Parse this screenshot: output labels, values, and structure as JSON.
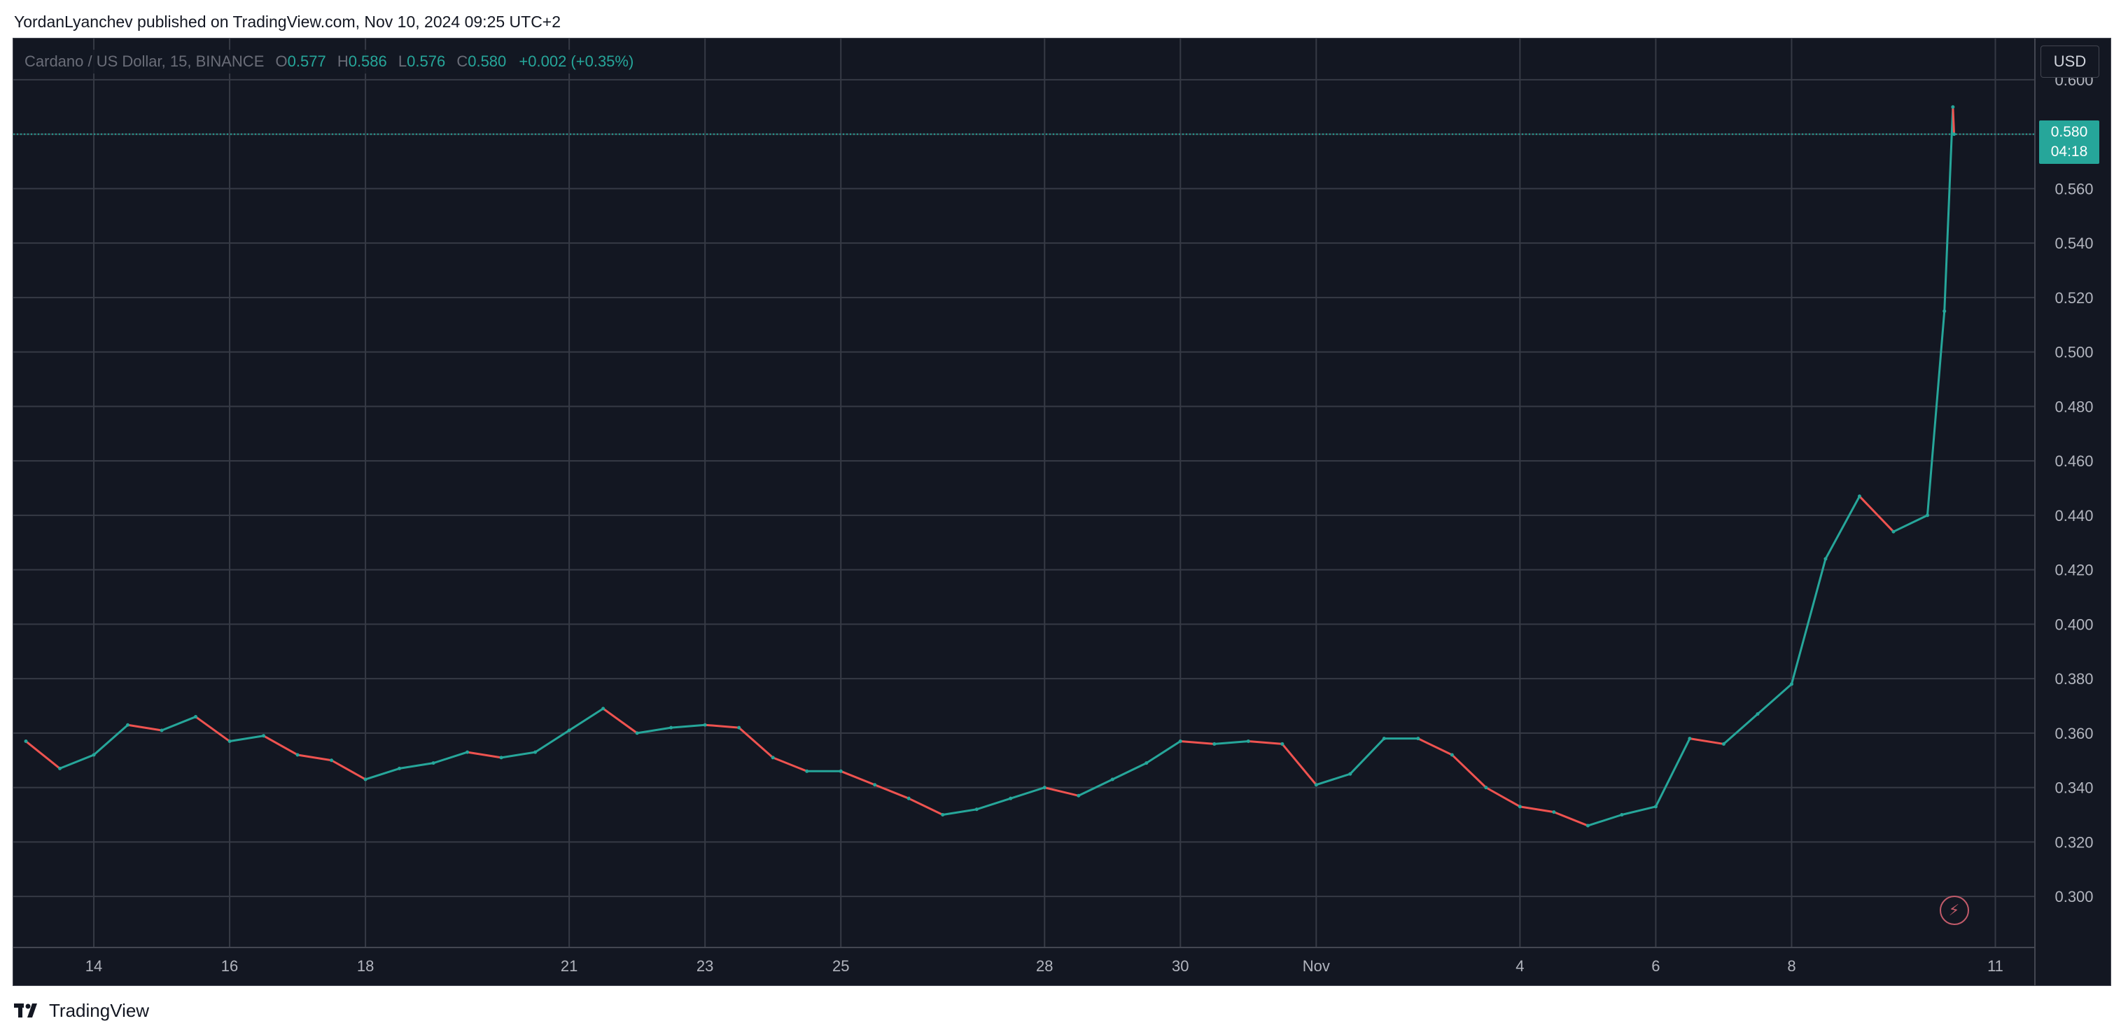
{
  "header": {
    "published_text": "YordanLyanchev published on TradingView.com, Nov 10, 2024 09:25 UTC+2"
  },
  "legend": {
    "symbol": "Cardano / US Dollar, 15, BINANCE",
    "open_label": "O",
    "open": "0.577",
    "high_label": "H",
    "high": "0.586",
    "low_label": "L",
    "low": "0.576",
    "close_label": "C",
    "close": "0.580",
    "change": "+0.002 (+0.35%)"
  },
  "currency_button": "USD",
  "last_price_tag": {
    "price": "0.580",
    "countdown": "04:18"
  },
  "icons": {
    "flash": "lightning-icon",
    "brand": "tradingview-logo"
  },
  "footer": {
    "brand_name": "TradingView"
  },
  "colors": {
    "background": "#131722",
    "grid": "#363a45",
    "up": "#26a69a",
    "down": "#ef5350",
    "axis_text": "#b2b5be"
  },
  "chart_data": {
    "type": "line",
    "title": "Cardano / US Dollar, 15, BINANCE",
    "xlabel": "",
    "ylabel": "",
    "y_axis_side": "right",
    "grid": true,
    "ylim": [
      0.29,
      0.61
    ],
    "xlim": [
      "2024-10-13",
      "2024-11-11 12:00"
    ],
    "y_ticks": [
      "0.600",
      "0.580",
      "0.560",
      "0.540",
      "0.520",
      "0.500",
      "0.480",
      "0.460",
      "0.440",
      "0.420",
      "0.400",
      "0.380",
      "0.360",
      "0.340",
      "0.320",
      "0.300"
    ],
    "x_ticks": [
      {
        "label": "14",
        "date": "2024-10-14"
      },
      {
        "label": "16",
        "date": "2024-10-16"
      },
      {
        "label": "18",
        "date": "2024-10-18"
      },
      {
        "label": "21",
        "date": "2024-10-21"
      },
      {
        "label": "23",
        "date": "2024-10-23"
      },
      {
        "label": "25",
        "date": "2024-10-25"
      },
      {
        "label": "28",
        "date": "2024-10-28"
      },
      {
        "label": "30",
        "date": "2024-10-30"
      },
      {
        "label": "Nov",
        "date": "2024-11-01"
      },
      {
        "label": "4",
        "date": "2024-11-04"
      },
      {
        "label": "6",
        "date": "2024-11-06"
      },
      {
        "label": "8",
        "date": "2024-11-08"
      },
      {
        "label": "11",
        "date": "2024-11-11"
      }
    ],
    "last_price": 0.58,
    "series": [
      {
        "x": [
          "2024-10-13 00:00",
          "2024-10-13 12:00",
          "2024-10-14 00:00",
          "2024-10-14 12:00",
          "2024-10-15 00:00",
          "2024-10-15 12:00",
          "2024-10-16 00:00",
          "2024-10-16 12:00",
          "2024-10-17 00:00",
          "2024-10-17 12:00",
          "2024-10-18 00:00",
          "2024-10-18 12:00",
          "2024-10-19 00:00",
          "2024-10-19 12:00",
          "2024-10-20 00:00",
          "2024-10-20 12:00",
          "2024-10-21 00:00",
          "2024-10-21 12:00",
          "2024-10-22 00:00",
          "2024-10-22 12:00",
          "2024-10-23 00:00",
          "2024-10-23 12:00",
          "2024-10-24 00:00",
          "2024-10-24 12:00",
          "2024-10-25 00:00",
          "2024-10-25 12:00",
          "2024-10-26 00:00",
          "2024-10-26 12:00",
          "2024-10-27 00:00",
          "2024-10-27 12:00",
          "2024-10-28 00:00",
          "2024-10-28 12:00",
          "2024-10-29 00:00",
          "2024-10-29 12:00",
          "2024-10-30 00:00",
          "2024-10-30 12:00",
          "2024-10-31 00:00",
          "2024-10-31 12:00",
          "2024-11-01 00:00",
          "2024-11-01 12:00",
          "2024-11-02 00:00",
          "2024-11-02 12:00",
          "2024-11-03 00:00",
          "2024-11-03 12:00",
          "2024-11-04 00:00",
          "2024-11-04 12:00",
          "2024-11-05 00:00",
          "2024-11-05 12:00",
          "2024-11-06 00:00",
          "2024-11-06 12:00",
          "2024-11-07 00:00",
          "2024-11-07 12:00",
          "2024-11-08 00:00",
          "2024-11-08 12:00",
          "2024-11-09 00:00",
          "2024-11-09 12:00",
          "2024-11-10 00:00",
          "2024-11-10 06:00",
          "2024-11-10 09:00",
          "2024-11-10 09:25"
        ],
        "values": [
          0.357,
          0.347,
          0.352,
          0.363,
          0.361,
          0.366,
          0.357,
          0.359,
          0.352,
          0.35,
          0.343,
          0.347,
          0.349,
          0.353,
          0.351,
          0.353,
          0.361,
          0.369,
          0.36,
          0.362,
          0.363,
          0.362,
          0.351,
          0.346,
          0.346,
          0.341,
          0.336,
          0.33,
          0.332,
          0.336,
          0.34,
          0.337,
          0.343,
          0.349,
          0.357,
          0.356,
          0.357,
          0.356,
          0.341,
          0.345,
          0.358,
          0.358,
          0.352,
          0.34,
          0.333,
          0.331,
          0.326,
          0.33,
          0.333,
          0.358,
          0.356,
          0.367,
          0.378,
          0.424,
          0.447,
          0.434,
          0.44,
          0.515,
          0.59,
          0.58
        ]
      }
    ]
  }
}
